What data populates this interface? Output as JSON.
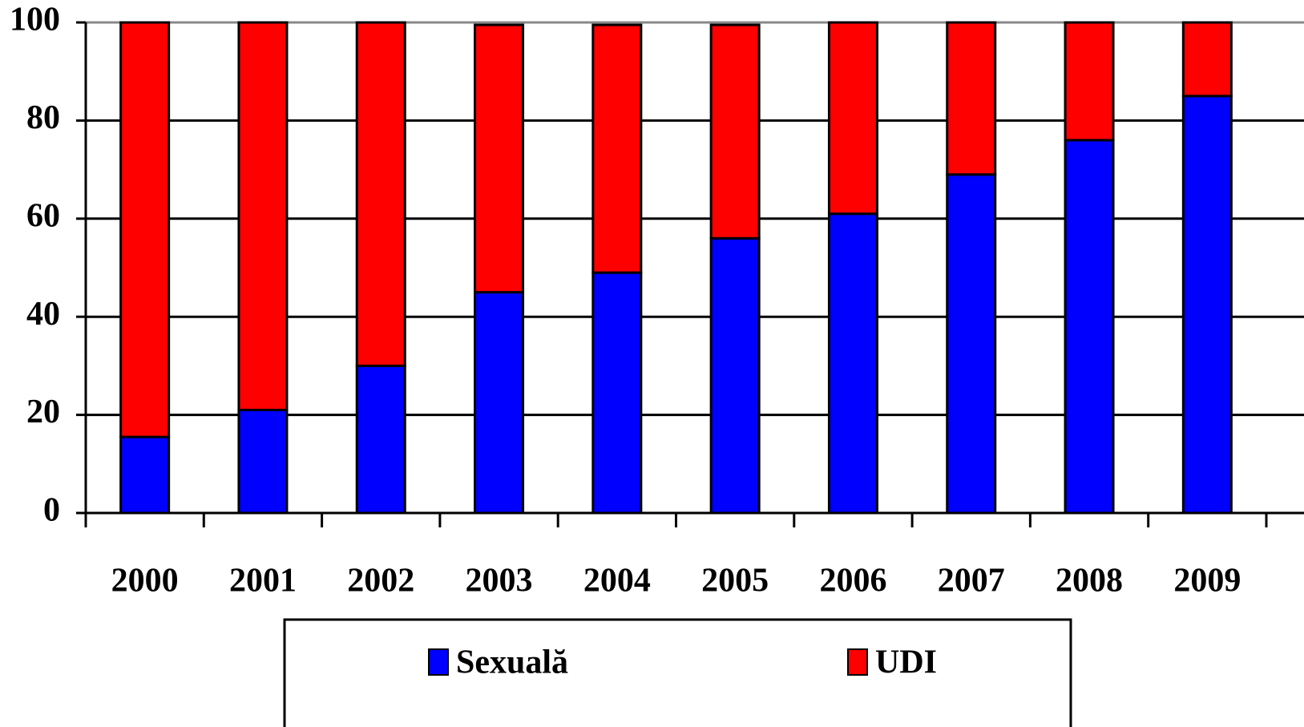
{
  "chart_data": {
    "type": "stacked_bar",
    "categories": [
      "2000",
      "2001",
      "2002",
      "2003",
      "2004",
      "2005",
      "2006",
      "2007",
      "2008",
      "2009"
    ],
    "series": [
      {
        "name": "Sexuală",
        "color": "#0000ff",
        "values": [
          15.5,
          21,
          30,
          45,
          49,
          56,
          61,
          69,
          76,
          85
        ]
      },
      {
        "name": "UDI",
        "color": "#ff0000",
        "values": [
          84.5,
          79,
          70,
          54.5,
          50.5,
          43.5,
          39,
          31,
          24,
          15
        ]
      }
    ],
    "ylim": [
      0,
      100
    ],
    "yticks": [
      0,
      20,
      40,
      60,
      80,
      100
    ],
    "grid": true,
    "legend": "bottom"
  }
}
